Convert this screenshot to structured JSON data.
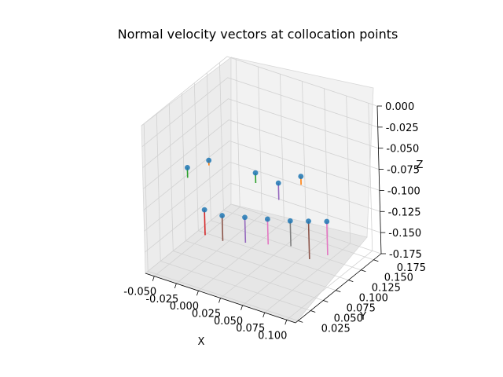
{
  "chart_data": {
    "type": "scatter3d",
    "title": "Normal velocity vectors at collocation points",
    "xlabel": "X",
    "ylabel": "Y",
    "zlabel": "Z",
    "xlim": [
      -0.06,
      0.11
    ],
    "ylim": [
      0.02,
      0.19
    ],
    "zlim": [
      -0.175,
      0.0
    ],
    "x_ticks": [
      "-0.050",
      "-0.025",
      "0.000",
      "0.025",
      "0.050",
      "0.075",
      "0.100"
    ],
    "y_ticks": [
      "0.025",
      "0.050",
      "0.075",
      "0.100",
      "0.125",
      "0.150",
      "0.175"
    ],
    "z_ticks": [
      "0.000",
      "-0.025",
      "-0.050",
      "-0.075",
      "-0.100",
      "-0.125",
      "-0.150",
      "-0.175"
    ],
    "grid": true,
    "points_color": "#1f77b4",
    "series_colors": [
      "#2ca02c",
      "#ff7f0e",
      "#d62728",
      "#8c564b",
      "#9467bd",
      "#e377c2",
      "#7f7f7f",
      "#2ca02c",
      "#9467bd",
      "#8c564b",
      "#e377c2",
      "#ff7f0e"
    ],
    "vectors": [
      {
        "x": -0.05,
        "y": 0.09,
        "z": -0.08,
        "dz": -0.012
      },
      {
        "x": -0.04,
        "y": 0.115,
        "z": -0.08,
        "dz": -0.006
      },
      {
        "x": -0.02,
        "y": 0.07,
        "z": -0.11,
        "dz": -0.03
      },
      {
        "x": 0.0,
        "y": 0.07,
        "z": -0.11,
        "dz": -0.03
      },
      {
        "x": 0.02,
        "y": 0.08,
        "z": -0.11,
        "dz": -0.03
      },
      {
        "x": 0.04,
        "y": 0.09,
        "z": -0.11,
        "dz": -0.03
      },
      {
        "x": 0.06,
        "y": 0.1,
        "z": -0.11,
        "dz": -0.03
      },
      {
        "x": 0.01,
        "y": 0.12,
        "z": -0.08,
        "dz": -0.012
      },
      {
        "x": 0.03,
        "y": 0.13,
        "z": -0.09,
        "dz": -0.02
      },
      {
        "x": 0.075,
        "y": 0.11,
        "z": -0.11,
        "dz": -0.045
      },
      {
        "x": 0.09,
        "y": 0.12,
        "z": -0.11,
        "dz": -0.04
      },
      {
        "x": 0.05,
        "y": 0.14,
        "z": -0.08,
        "dz": -0.01
      }
    ]
  }
}
